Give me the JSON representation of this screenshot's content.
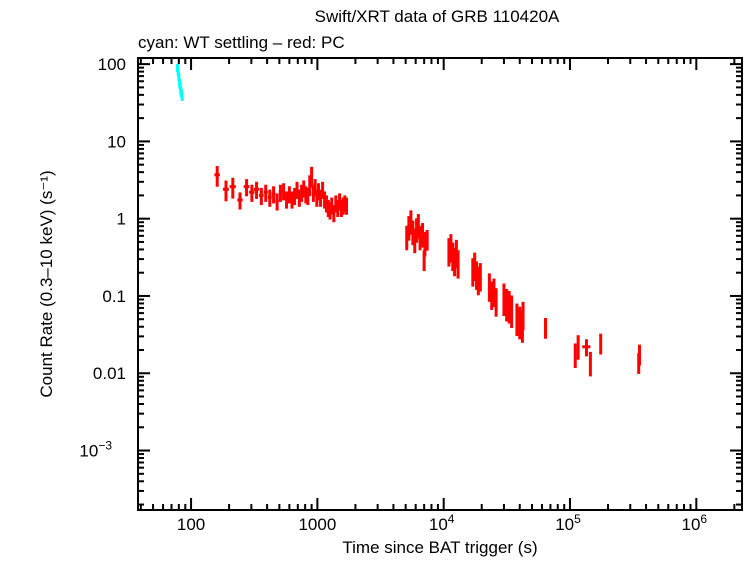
{
  "chart_data": {
    "type": "scatter",
    "title": "Swift/XRT data of GRB 110420A",
    "subtitle": "cyan: WT settling – red: PC",
    "xlabel": "Time since BAT trigger (s)",
    "ylabel": "Count Rate (0.3–10 keV) (s⁻¹)",
    "xscale": "log",
    "yscale": "log",
    "xlim": [
      38,
      2300000
    ],
    "ylim": [
      0.00017,
      120
    ],
    "grid": false,
    "x_ticks": [
      {
        "value": 100,
        "label": "100"
      },
      {
        "value": 1000,
        "label": "1000"
      },
      {
        "value": 10000,
        "label": "10",
        "exp": "4"
      },
      {
        "value": 100000,
        "label": "10",
        "exp": "5"
      },
      {
        "value": 1000000,
        "label": "10",
        "exp": "6"
      }
    ],
    "y_ticks": [
      {
        "value": 100,
        "label": "100"
      },
      {
        "value": 10,
        "label": "10"
      },
      {
        "value": 1,
        "label": "1"
      },
      {
        "value": 0.1,
        "label": "0.1"
      },
      {
        "value": 0.01,
        "label": "0.01"
      },
      {
        "value": 0.001,
        "label": "10",
        "exp": "−3"
      }
    ],
    "series": [
      {
        "color": "#00ffff",
        "points": [
          [
            78,
            90,
            0.5,
            0.12
          ],
          [
            79,
            80,
            0.5,
            0.12
          ],
          [
            80,
            68,
            0.5,
            0.12
          ],
          [
            81,
            58,
            0.5,
            0.12
          ],
          [
            82,
            52,
            0.5,
            0.12
          ],
          [
            83,
            46,
            0.5,
            0.12
          ],
          [
            84,
            42,
            0.5,
            0.12
          ],
          [
            85,
            38,
            0.5,
            0.12
          ]
        ]
      },
      {
        "color": "#ff0000",
        "points": [
          [
            161,
            3.7,
            8,
            0.3
          ],
          [
            189,
            2.4,
            10,
            0.3
          ],
          [
            214,
            2.6,
            12,
            0.3
          ],
          [
            244,
            1.75,
            12,
            0.25
          ],
          [
            275,
            2.6,
            14,
            0.25
          ],
          [
            303,
            2.2,
            15,
            0.25
          ],
          [
            330,
            2.4,
            16,
            0.25
          ],
          [
            360,
            2.0,
            15,
            0.25
          ],
          [
            390,
            2.2,
            15,
            0.25
          ],
          [
            420,
            1.9,
            15,
            0.25
          ],
          [
            450,
            2.1,
            15,
            0.25
          ],
          [
            480,
            1.7,
            15,
            0.25
          ],
          [
            510,
            2.2,
            15,
            0.25
          ],
          [
            540,
            2.3,
            15,
            0.25
          ],
          [
            570,
            1.8,
            15,
            0.25
          ],
          [
            600,
            2.1,
            15,
            0.25
          ],
          [
            630,
            1.8,
            15,
            0.25
          ],
          [
            660,
            2.0,
            15,
            0.25
          ],
          [
            690,
            2.4,
            15,
            0.25
          ],
          [
            720,
            1.9,
            15,
            0.25
          ],
          [
            750,
            2.2,
            15,
            0.25
          ],
          [
            780,
            2.5,
            15,
            0.25
          ],
          [
            810,
            2.1,
            15,
            0.25
          ],
          [
            840,
            2.0,
            15,
            0.25
          ],
          [
            870,
            2.8,
            15,
            0.3
          ],
          [
            900,
            3.6,
            15,
            0.3
          ],
          [
            930,
            2.2,
            15,
            0.25
          ],
          [
            960,
            2.6,
            15,
            0.25
          ],
          [
            990,
            1.9,
            15,
            0.25
          ],
          [
            1020,
            2.3,
            15,
            0.25
          ],
          [
            1060,
            1.9,
            15,
            0.25
          ],
          [
            1100,
            2.4,
            15,
            0.25
          ],
          [
            1140,
            1.8,
            15,
            0.25
          ],
          [
            1180,
            1.6,
            15,
            0.25
          ],
          [
            1220,
            1.4,
            15,
            0.25
          ],
          [
            1260,
            1.3,
            15,
            0.25
          ],
          [
            1300,
            1.5,
            15,
            0.25
          ],
          [
            1350,
            1.2,
            15,
            0.25
          ],
          [
            1400,
            1.6,
            15,
            0.25
          ],
          [
            1450,
            1.4,
            15,
            0.25
          ],
          [
            1500,
            1.7,
            15,
            0.25
          ],
          [
            1550,
            1.4,
            15,
            0.25
          ],
          [
            1600,
            1.5,
            15,
            0.25
          ],
          [
            1650,
            1.6,
            15,
            0.25
          ],
          [
            1700,
            1.5,
            15,
            0.25
          ],
          [
            5100,
            0.6,
            80,
            0.35
          ],
          [
            5300,
            0.8,
            80,
            0.35
          ],
          [
            5500,
            0.95,
            80,
            0.35
          ],
          [
            5700,
            0.7,
            80,
            0.35
          ],
          [
            5900,
            0.55,
            80,
            0.35
          ],
          [
            6100,
            0.75,
            80,
            0.35
          ],
          [
            6300,
            0.85,
            80,
            0.35
          ],
          [
            6500,
            0.6,
            80,
            0.35
          ],
          [
            6800,
            0.65,
            80,
            0.35
          ],
          [
            7100,
            0.5,
            80,
            0.35
          ],
          [
            7400,
            0.55,
            80,
            0.3
          ],
          [
            7000,
            0.3,
            60,
            0.3
          ],
          [
            11000,
            0.4,
            150,
            0.4
          ],
          [
            11400,
            0.45,
            150,
            0.4
          ],
          [
            11800,
            0.35,
            150,
            0.4
          ],
          [
            12200,
            0.3,
            150,
            0.4
          ],
          [
            12600,
            0.38,
            150,
            0.4
          ],
          [
            13000,
            0.28,
            150,
            0.4
          ],
          [
            17000,
            0.22,
            200,
            0.4
          ],
          [
            17600,
            0.26,
            200,
            0.4
          ],
          [
            18200,
            0.2,
            200,
            0.4
          ],
          [
            18800,
            0.17,
            200,
            0.4
          ],
          [
            19500,
            0.19,
            200,
            0.4
          ],
          [
            23000,
            0.14,
            250,
            0.4
          ],
          [
            24000,
            0.11,
            250,
            0.4
          ],
          [
            25000,
            0.12,
            250,
            0.4
          ],
          [
            26000,
            0.09,
            250,
            0.4
          ],
          [
            30000,
            0.1,
            300,
            0.45
          ],
          [
            31500,
            0.085,
            300,
            0.45
          ],
          [
            33000,
            0.08,
            300,
            0.45
          ],
          [
            34500,
            0.07,
            300,
            0.45
          ],
          [
            38000,
            0.055,
            400,
            0.45
          ],
          [
            40000,
            0.05,
            400,
            0.45
          ],
          [
            42000,
            0.045,
            400,
            0.45
          ],
          [
            42500,
            0.06,
            400,
            0.4
          ],
          [
            64000,
            0.04,
            800,
            0.3
          ],
          [
            110000,
            0.018,
            1500,
            0.35
          ],
          [
            116000,
            0.023,
            1500,
            0.35
          ],
          [
            135000,
            0.022,
            10000,
            0.25
          ],
          [
            145000,
            0.014,
            1500,
            0.35
          ],
          [
            175000,
            0.025,
            2000,
            0.3
          ],
          [
            350000,
            0.014,
            4000,
            0.3
          ],
          [
            355000,
            0.018,
            4000,
            0.3
          ]
        ]
      }
    ]
  }
}
